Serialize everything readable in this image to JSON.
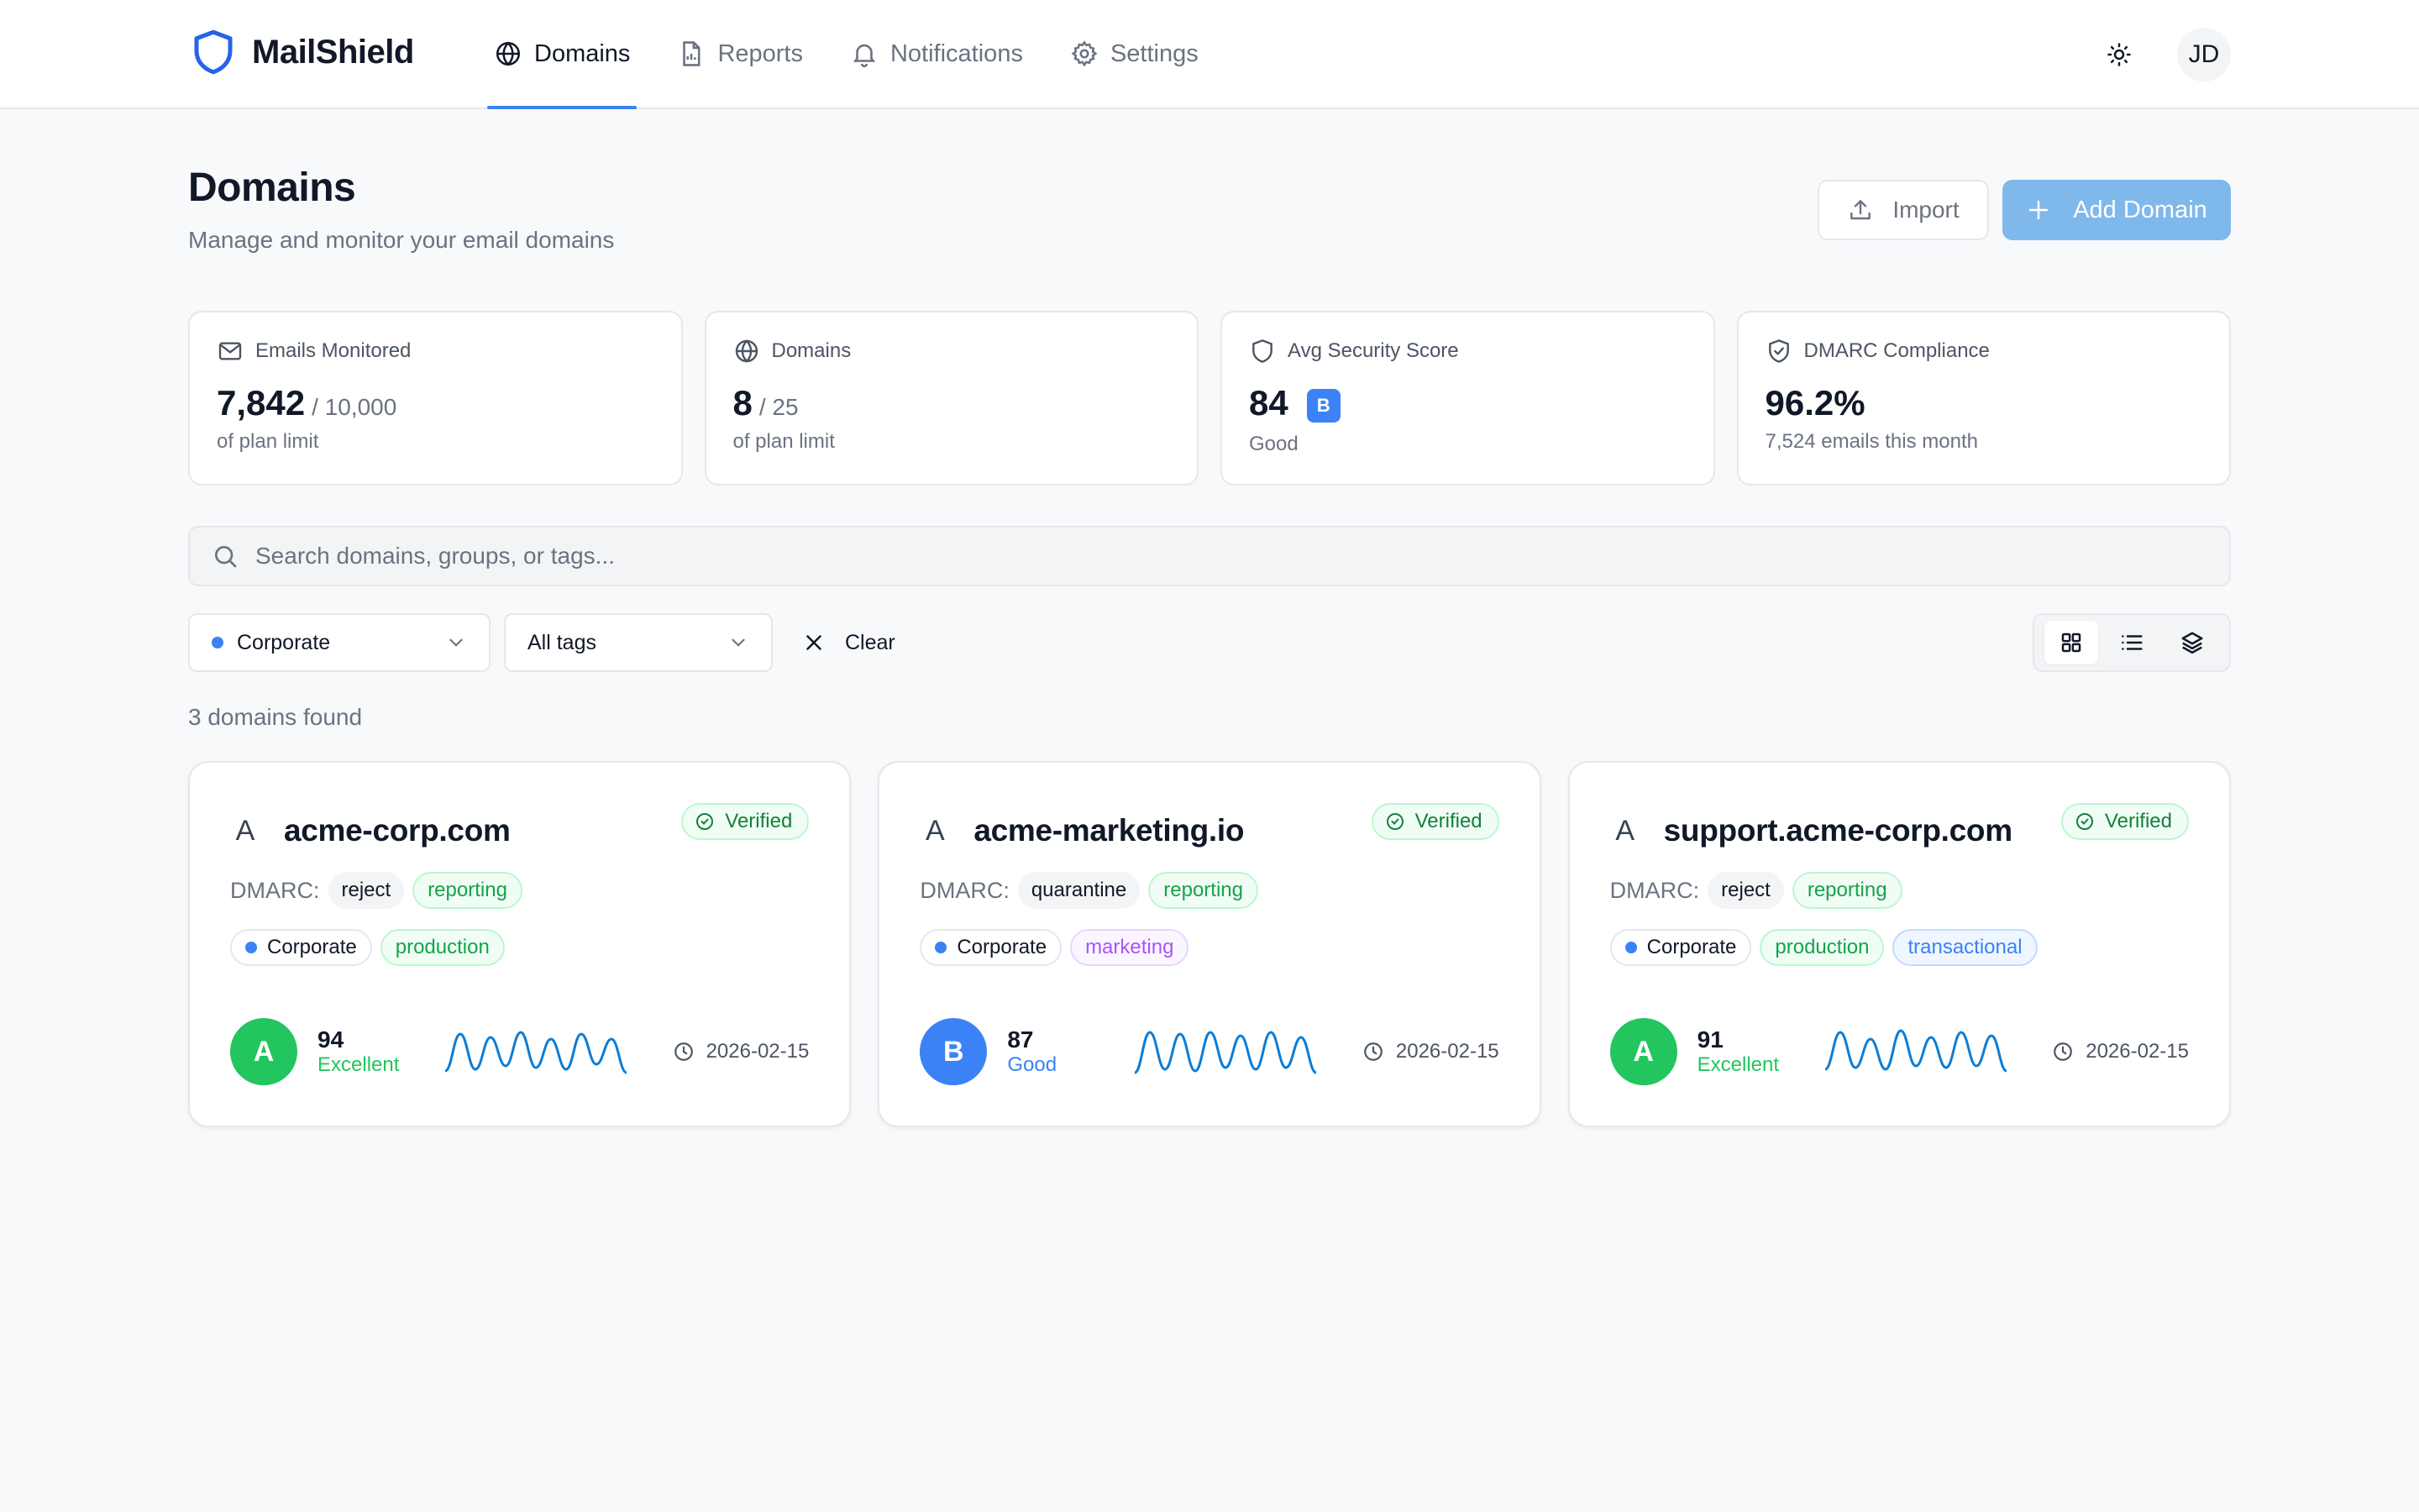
{
  "app": {
    "name": "MailShield",
    "user_initials": "JD"
  },
  "nav": [
    {
      "label": "Domains",
      "icon": "globe-icon",
      "active": true
    },
    {
      "label": "Reports",
      "icon": "file-chart-icon",
      "active": false
    },
    {
      "label": "Notifications",
      "icon": "bell-icon",
      "active": false
    },
    {
      "label": "Settings",
      "icon": "gear-icon",
      "active": false
    }
  ],
  "page": {
    "title": "Domains",
    "subtitle": "Manage and monitor your email domains",
    "import_label": "Import",
    "add_label": "Add Domain"
  },
  "stats": [
    {
      "label": "Emails Monitored",
      "icon": "mail-icon",
      "value": "7,842",
      "suffix": "/ 10,000",
      "note": "of plan limit"
    },
    {
      "label": "Domains",
      "icon": "globe-icon",
      "value": "8",
      "suffix": "/ 25",
      "note": "of plan limit"
    },
    {
      "label": "Avg Security Score",
      "icon": "shield-icon",
      "value": "84",
      "grade": "B",
      "note": "Good"
    },
    {
      "label": "DMARC Compliance",
      "icon": "shield-check-icon",
      "value": "96.2%",
      "note": "7,524 emails this month"
    }
  ],
  "search": {
    "placeholder": "Search domains, groups, or tags..."
  },
  "filters": {
    "group": "Corporate",
    "tags": "All tags",
    "clear_label": "Clear"
  },
  "results_count": "3 domains found",
  "colors": {
    "accent": "#3b82f6",
    "success": "#22c55e",
    "add_button": "#7fb8ea"
  },
  "dmarc_label": "DMARC:",
  "domains": [
    {
      "letter": "A",
      "name": "acme-corp.com",
      "status": "Verified",
      "policy": "reject",
      "reporting": "reporting",
      "group": "Corporate",
      "tags": [
        "production"
      ],
      "grade": "A",
      "score": "94",
      "score_label": "Excellent",
      "grade_color": "#22c55e",
      "date": "2026-02-15"
    },
    {
      "letter": "A",
      "name": "acme-marketing.io",
      "status": "Verified",
      "policy": "quarantine",
      "reporting": "reporting",
      "group": "Corporate",
      "tags": [
        "marketing"
      ],
      "grade": "B",
      "score": "87",
      "score_label": "Good",
      "grade_color": "#3b82f6",
      "date": "2026-02-15"
    },
    {
      "letter": "A",
      "name": "support.acme-corp.com",
      "status": "Verified",
      "policy": "reject",
      "reporting": "reporting",
      "group": "Corporate",
      "tags": [
        "production",
        "transactional"
      ],
      "grade": "A",
      "score": "91",
      "score_label": "Excellent",
      "grade_color": "#22c55e",
      "date": "2026-02-15"
    }
  ]
}
